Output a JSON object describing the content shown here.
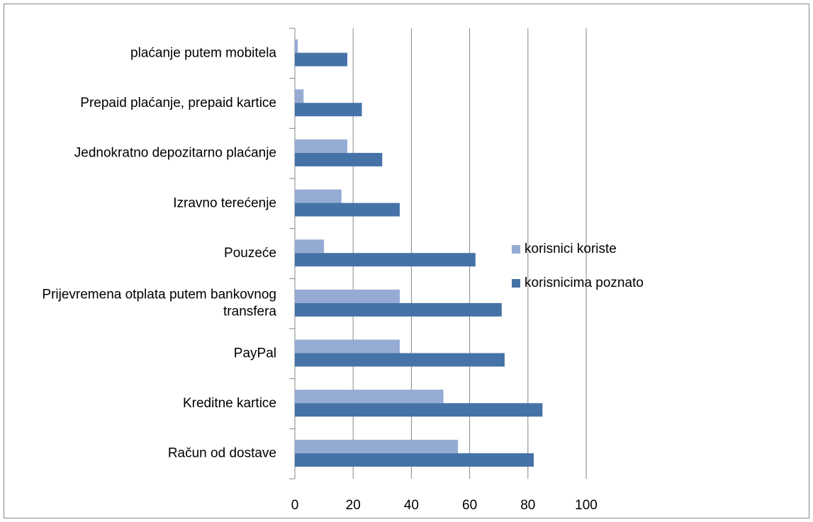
{
  "chart_data": {
    "type": "bar",
    "orientation": "horizontal",
    "categories": [
      "plaćanje putem mobitela",
      "Prepaid plaćanje, prepaid kartice",
      "Jednokratno depozitarno plaćanje",
      "Izravno terećenje",
      "Pouzeće",
      "Prijevremena otplata putem bankovnog transfera",
      "PayPal",
      "Kreditne kartice",
      "Račun od dostave"
    ],
    "series": [
      {
        "name": "korisnici koriste",
        "color": "#95abd4",
        "values": [
          1,
          3,
          18,
          16,
          10,
          36,
          36,
          51,
          56
        ]
      },
      {
        "name": "korisnicima poznato",
        "color": "#4573a7",
        "values": [
          18,
          23,
          30,
          36,
          62,
          71,
          72,
          85,
          82
        ]
      }
    ],
    "xlim": [
      0,
      100
    ],
    "xticks": [
      0,
      20,
      40,
      60,
      80,
      100
    ],
    "grid": true,
    "legend": "right"
  }
}
